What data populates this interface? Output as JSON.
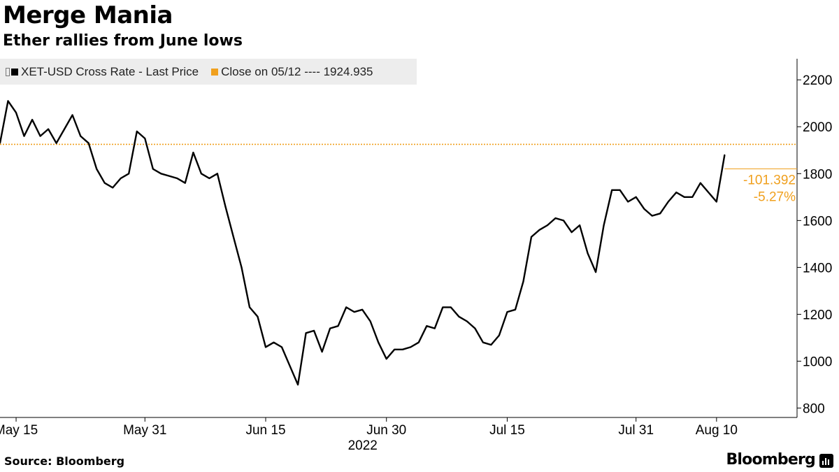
{
  "header": {
    "title": "Merge Mania",
    "subtitle": "Ether rallies from June lows"
  },
  "legend": {
    "series_label": "XET-USD Cross Rate - Last Price",
    "reference_label": "Close on 05/12 ---- 1924.935"
  },
  "colors": {
    "series": "#000000",
    "reference": "#f0a01e",
    "axis": "#000000",
    "legend_bg": "#ededed"
  },
  "footer": {
    "source": "Source: Bloomberg",
    "brand": "Bloomberg"
  },
  "chart_data": {
    "type": "line",
    "title": "Merge Mania",
    "subtitle": "Ether rallies from June lows",
    "xlabel": "2022",
    "ylabel": "",
    "ylim": [
      760,
      2290
    ],
    "x_range": [
      "2022-05-13",
      "2022-08-20"
    ],
    "y_ticks": [
      800,
      1000,
      1200,
      1400,
      1600,
      1800,
      2000,
      2200
    ],
    "x_ticks": [
      {
        "date": "2022-05-15",
        "label": "May 15"
      },
      {
        "date": "2022-05-31",
        "label": "May 31"
      },
      {
        "date": "2022-06-15",
        "label": "Jun 15"
      },
      {
        "date": "2022-06-30",
        "label": "Jun 30"
      },
      {
        "date": "2022-07-15",
        "label": "Jul 15"
      },
      {
        "date": "2022-07-31",
        "label": "Jul 31"
      },
      {
        "date": "2022-08-10",
        "label": "Aug 10"
      }
    ],
    "grid": false,
    "legend_position": "top-left",
    "series": [
      {
        "name": "XET-USD Cross Rate - Last Price",
        "x": [
          "2022-05-13",
          "2022-05-14",
          "2022-05-15",
          "2022-05-16",
          "2022-05-17",
          "2022-05-18",
          "2022-05-19",
          "2022-05-20",
          "2022-05-21",
          "2022-05-22",
          "2022-05-23",
          "2022-05-24",
          "2022-05-25",
          "2022-05-26",
          "2022-05-27",
          "2022-05-28",
          "2022-05-29",
          "2022-05-30",
          "2022-05-31",
          "2022-06-01",
          "2022-06-02",
          "2022-06-03",
          "2022-06-04",
          "2022-06-05",
          "2022-06-06",
          "2022-06-07",
          "2022-06-08",
          "2022-06-09",
          "2022-06-10",
          "2022-06-11",
          "2022-06-12",
          "2022-06-13",
          "2022-06-14",
          "2022-06-15",
          "2022-06-16",
          "2022-06-17",
          "2022-06-18",
          "2022-06-19",
          "2022-06-20",
          "2022-06-21",
          "2022-06-22",
          "2022-06-23",
          "2022-06-24",
          "2022-06-25",
          "2022-06-26",
          "2022-06-27",
          "2022-06-28",
          "2022-06-29",
          "2022-06-30",
          "2022-07-01",
          "2022-07-02",
          "2022-07-03",
          "2022-07-04",
          "2022-07-05",
          "2022-07-06",
          "2022-07-07",
          "2022-07-08",
          "2022-07-09",
          "2022-07-10",
          "2022-07-11",
          "2022-07-12",
          "2022-07-13",
          "2022-07-14",
          "2022-07-15",
          "2022-07-16",
          "2022-07-17",
          "2022-07-18",
          "2022-07-19",
          "2022-07-20",
          "2022-07-21",
          "2022-07-22",
          "2022-07-23",
          "2022-07-24",
          "2022-07-25",
          "2022-07-26",
          "2022-07-27",
          "2022-07-28",
          "2022-07-29",
          "2022-07-30",
          "2022-07-31",
          "2022-08-01",
          "2022-08-02",
          "2022-08-03",
          "2022-08-04",
          "2022-08-05",
          "2022-08-06",
          "2022-08-07",
          "2022-08-08",
          "2022-08-09",
          "2022-08-10",
          "2022-08-11"
        ],
        "values": [
          1930,
          2110,
          2060,
          1960,
          2030,
          1960,
          1990,
          1930,
          1990,
          2050,
          1960,
          1930,
          1820,
          1760,
          1740,
          1780,
          1800,
          1980,
          1950,
          1820,
          1800,
          1790,
          1780,
          1760,
          1890,
          1800,
          1780,
          1800,
          1660,
          1530,
          1400,
          1230,
          1190,
          1060,
          1080,
          1060,
          980,
          900,
          1120,
          1130,
          1040,
          1140,
          1150,
          1230,
          1210,
          1220,
          1170,
          1080,
          1010,
          1050,
          1050,
          1060,
          1080,
          1150,
          1140,
          1230,
          1230,
          1190,
          1170,
          1140,
          1080,
          1070,
          1110,
          1210,
          1220,
          1340,
          1530,
          1560,
          1580,
          1610,
          1600,
          1550,
          1580,
          1460,
          1380,
          1580,
          1730,
          1730,
          1680,
          1700,
          1650,
          1620,
          1630,
          1680,
          1720,
          1700,
          1700,
          1760,
          1720,
          1680,
          1880
        ]
      }
    ],
    "reference_line": {
      "label": "Close on 05/12",
      "value": 1924.935
    },
    "annotations": [
      "-101.392",
      "-5.27%"
    ]
  }
}
